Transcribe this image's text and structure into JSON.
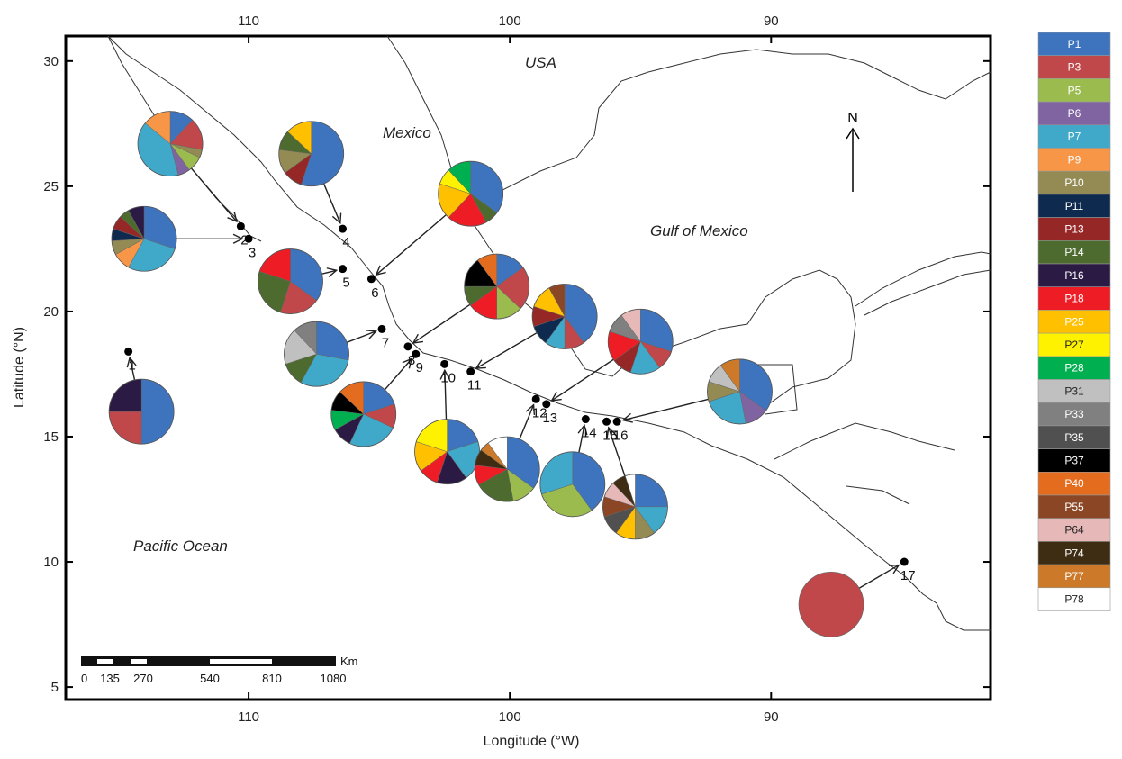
{
  "axes": {
    "xlabel": "Longitude (°W)",
    "ylabel": "Latitude (°N)",
    "x_ticks": [
      110,
      100,
      90
    ],
    "y_ticks": [
      30,
      25,
      20,
      15,
      10,
      5
    ],
    "lon_range_west": [
      117,
      81.6
    ],
    "lat_range": [
      4.5,
      31
    ]
  },
  "labels": {
    "usa": "USA",
    "mexico": "Mexico",
    "gulf": "Gulf of Mexico",
    "pacific": "Pacific Ocean",
    "north": "N"
  },
  "scale_bar": {
    "unit": "Km",
    "ticks": [
      "0",
      "135",
      "270",
      "540",
      "810",
      "1080"
    ]
  },
  "colors": {
    "P1": "#3e73bd",
    "P3": "#c0474a",
    "P5": "#9bbb4f",
    "P6": "#8064a2",
    "P7": "#40a8c8",
    "P9": "#f79646",
    "P10": "#948a54",
    "P11": "#0f2a4f",
    "P13": "#962727",
    "P14": "#4e6b2f",
    "P16": "#2b1a44",
    "P18": "#ee1c25",
    "P25": "#ffc000",
    "P27": "#fff200",
    "P28": "#00b050",
    "P31": "#c0c0c0",
    "P33": "#808080",
    "P35": "#505050",
    "P37": "#000000",
    "P40": "#e46c1f",
    "P55": "#8b4725",
    "P64": "#e6b9b8",
    "P74": "#3e2d12",
    "P77": "#cc7a29",
    "P78": "#ffffff"
  },
  "legend": [
    "P1",
    "P3",
    "P5",
    "P6",
    "P7",
    "P9",
    "P10",
    "P11",
    "P13",
    "P14",
    "P16",
    "P18",
    "P25",
    "P27",
    "P28",
    "P31",
    "P33",
    "P35",
    "P37",
    "P40",
    "P55",
    "P64",
    "P74",
    "P77",
    "P78"
  ],
  "sites": [
    {
      "id": "1",
      "label": "1",
      "lon": 114.6,
      "lat": 18.4
    },
    {
      "id": "2",
      "label": "2",
      "lon": 110.3,
      "lat": 23.4
    },
    {
      "id": "3",
      "label": "3",
      "lon": 110.0,
      "lat": 22.9
    },
    {
      "id": "4",
      "label": "4",
      "lon": 106.4,
      "lat": 23.3
    },
    {
      "id": "5",
      "label": "5",
      "lon": 106.4,
      "lat": 21.7
    },
    {
      "id": "6",
      "label": "6",
      "lon": 105.3,
      "lat": 21.3
    },
    {
      "id": "7",
      "label": "7",
      "lon": 104.9,
      "lat": 19.3
    },
    {
      "id": "8",
      "label": "8",
      "lon": 103.9,
      "lat": 18.6
    },
    {
      "id": "9",
      "label": "9",
      "lon": 103.6,
      "lat": 18.3
    },
    {
      "id": "10",
      "label": "10",
      "lon": 102.5,
      "lat": 17.9
    },
    {
      "id": "11",
      "label": "11",
      "lon": 101.5,
      "lat": 17.6
    },
    {
      "id": "12",
      "label": "12",
      "lon": 99.0,
      "lat": 16.5
    },
    {
      "id": "13",
      "label": "13",
      "lon": 98.6,
      "lat": 16.3
    },
    {
      "id": "14",
      "label": "14",
      "lon": 97.1,
      "lat": 15.7
    },
    {
      "id": "15",
      "label": "15",
      "lon": 96.3,
      "lat": 15.6
    },
    {
      "id": "16",
      "label": "16",
      "lon": 95.9,
      "lat": 15.6
    },
    {
      "id": "17",
      "label": "17",
      "lon": 84.9,
      "lat": 10.0
    }
  ],
  "pies": [
    {
      "site": "1",
      "lon": 114.1,
      "lat": 16.0,
      "slices": [
        [
          "P1",
          50
        ],
        [
          "P3",
          25
        ],
        [
          "P16",
          25
        ]
      ]
    },
    {
      "site": "2",
      "lon": 113.0,
      "lat": 26.7,
      "slices": [
        [
          "P1",
          12
        ],
        [
          "P3",
          16
        ],
        [
          "P10",
          4
        ],
        [
          "P5",
          8
        ],
        [
          "P6",
          6
        ],
        [
          "P7",
          40
        ],
        [
          "P9",
          14
        ]
      ]
    },
    {
      "site": "3",
      "lon": 114.0,
      "lat": 22.9,
      "slices": [
        [
          "P1",
          30
        ],
        [
          "P7",
          28
        ],
        [
          "P9",
          9
        ],
        [
          "P10",
          7
        ],
        [
          "P11",
          6
        ],
        [
          "P13",
          7
        ],
        [
          "P14",
          5
        ],
        [
          "P16",
          8
        ]
      ]
    },
    {
      "site": "4",
      "lon": 107.6,
      "lat": 26.3,
      "slices": [
        [
          "P1",
          55
        ],
        [
          "P13",
          10
        ],
        [
          "P10",
          12
        ],
        [
          "P14",
          10
        ],
        [
          "P25",
          13
        ]
      ]
    },
    {
      "site": "5",
      "lon": 108.4,
      "lat": 21.2,
      "slices": [
        [
          "P1",
          35
        ],
        [
          "P3",
          20
        ],
        [
          "P14",
          25
        ],
        [
          "P18",
          20
        ]
      ]
    },
    {
      "site": "6",
      "lon": 101.5,
      "lat": 24.7,
      "slices": [
        [
          "P1",
          35
        ],
        [
          "P14",
          7
        ],
        [
          "P18",
          20
        ],
        [
          "P25",
          18
        ],
        [
          "P27",
          8
        ],
        [
          "P28",
          12
        ]
      ]
    },
    {
      "site": "8",
      "lon": 100.5,
      "lat": 21.0,
      "slices": [
        [
          "P1",
          15
        ],
        [
          "P3",
          22
        ],
        [
          "P5",
          13
        ],
        [
          "P18",
          15
        ],
        [
          "P14",
          10
        ],
        [
          "P37",
          15
        ],
        [
          "P40",
          10
        ]
      ]
    },
    {
      "site": "7",
      "lon": 107.4,
      "lat": 18.3,
      "slices": [
        [
          "P1",
          28
        ],
        [
          "P7",
          30
        ],
        [
          "P14",
          12
        ],
        [
          "P31",
          18
        ],
        [
          "P33",
          12
        ]
      ]
    },
    {
      "site": "11",
      "lon": 97.9,
      "lat": 19.8,
      "slices": [
        [
          "P1",
          40
        ],
        [
          "P3",
          10
        ],
        [
          "P7",
          10
        ],
        [
          "P11",
          10
        ],
        [
          "P13",
          10
        ],
        [
          "P25",
          12
        ],
        [
          "P55",
          8
        ]
      ]
    },
    {
      "site": "13",
      "lon": 95.0,
      "lat": 18.8,
      "slices": [
        [
          "P1",
          30
        ],
        [
          "P3",
          10
        ],
        [
          "P7",
          15
        ],
        [
          "P13",
          10
        ],
        [
          "P18",
          15
        ],
        [
          "P33",
          10
        ],
        [
          "P64",
          10
        ]
      ]
    },
    {
      "site": "9",
      "lon": 105.6,
      "lat": 15.9,
      "slices": [
        [
          "P1",
          20
        ],
        [
          "P3",
          12
        ],
        [
          "P7",
          25
        ],
        [
          "P16",
          10
        ],
        [
          "P28",
          10
        ],
        [
          "P37",
          10
        ],
        [
          "P40",
          13
        ]
      ]
    },
    {
      "site": "10",
      "lon": 102.4,
      "lat": 14.4,
      "slices": [
        [
          "P1",
          20
        ],
        [
          "P7",
          20
        ],
        [
          "P16",
          15
        ],
        [
          "P18",
          10
        ],
        [
          "P25",
          15
        ],
        [
          "P27",
          20
        ]
      ]
    },
    {
      "site": "12",
      "lon": 100.1,
      "lat": 13.7,
      "slices": [
        [
          "P1",
          35
        ],
        [
          "P5",
          12
        ],
        [
          "P14",
          20
        ],
        [
          "P18",
          10
        ],
        [
          "P74",
          8
        ],
        [
          "P77",
          5
        ],
        [
          "P78",
          10
        ]
      ]
    },
    {
      "site": "14",
      "lon": 97.6,
      "lat": 13.1,
      "slices": [
        [
          "P1",
          40
        ],
        [
          "P5",
          30
        ],
        [
          "P7",
          30
        ]
      ]
    },
    {
      "site": "15",
      "lon": 95.2,
      "lat": 12.2,
      "slices": [
        [
          "P1",
          25
        ],
        [
          "P7",
          15
        ],
        [
          "P10",
          10
        ],
        [
          "P25",
          10
        ],
        [
          "P35",
          10
        ],
        [
          "P55",
          10
        ],
        [
          "P64",
          8
        ],
        [
          "P74",
          7
        ],
        [
          "P78",
          5
        ]
      ]
    },
    {
      "site": "16",
      "lon": 91.2,
      "lat": 16.8,
      "slices": [
        [
          "P1",
          35
        ],
        [
          "P6",
          12
        ],
        [
          "P7",
          23
        ],
        [
          "P10",
          10
        ],
        [
          "P31",
          10
        ],
        [
          "P77",
          10
        ]
      ]
    },
    {
      "site": "17",
      "lon": 87.7,
      "lat": 8.3,
      "slices": [
        [
          "P3",
          100
        ]
      ]
    }
  ]
}
